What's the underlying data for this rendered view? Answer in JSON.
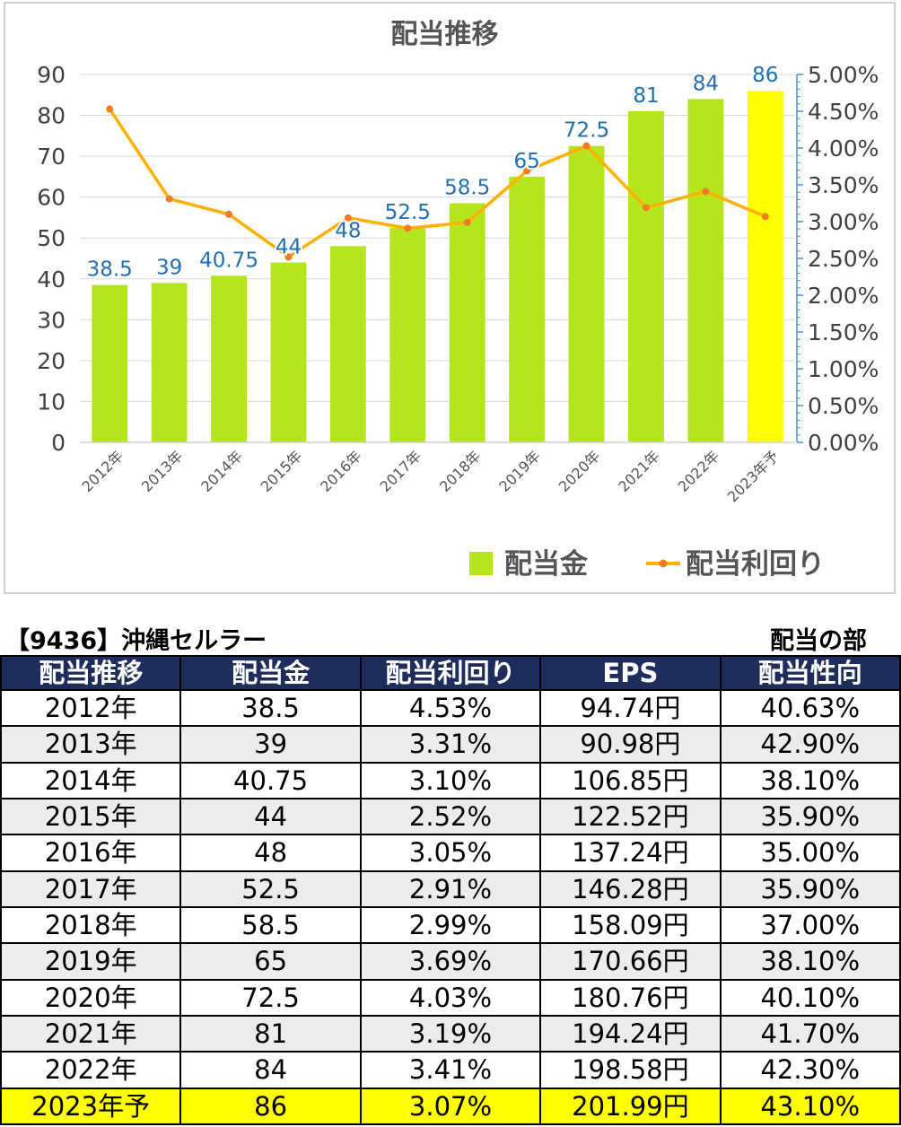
{
  "chart_data": {
    "type": "bar+line",
    "title": "配当推移",
    "categories": [
      "2012年",
      "2013年",
      "2014年",
      "2015年",
      "2016年",
      "2017年",
      "2018年",
      "2019年",
      "2020年",
      "2021年",
      "2022年",
      "2023年予"
    ],
    "series": [
      {
        "name": "配当金",
        "type": "bar",
        "axis": "left",
        "color": "#b5e61d",
        "highlight_color": "#ffff00",
        "highlight_index": 11,
        "values": [
          38.5,
          39,
          40.75,
          44,
          48,
          52.5,
          58.5,
          65,
          72.5,
          81,
          84,
          86
        ],
        "labels": [
          "38.5",
          "39",
          "40.75",
          "44",
          "48",
          "52.5",
          "58.5",
          "65",
          "72.5",
          "81",
          "84",
          "86"
        ],
        "label_color": "#1f6fb4"
      },
      {
        "name": "配当利回り",
        "type": "line",
        "axis": "right",
        "color": "#ffb000",
        "marker_color": "#f07c28",
        "values": [
          4.53,
          3.31,
          3.1,
          2.52,
          3.05,
          2.91,
          2.99,
          3.69,
          4.03,
          3.19,
          3.41,
          3.07
        ]
      }
    ],
    "y_left": {
      "ylim": [
        0,
        90
      ],
      "ticks": [
        "0",
        "10",
        "20",
        "30",
        "40",
        "50",
        "60",
        "70",
        "80",
        "90"
      ]
    },
    "y_right": {
      "ylim": [
        0,
        5
      ],
      "ticks": [
        "0.00%",
        "0.50%",
        "1.00%",
        "1.50%",
        "2.00%",
        "2.50%",
        "3.00%",
        "3.50%",
        "4.00%",
        "4.50%",
        "5.00%"
      ]
    },
    "grid": true,
    "legend": "bottom-right"
  },
  "table": {
    "title": "【9436】沖縄セルラー",
    "section": "配当の部",
    "headers": [
      "配当推移",
      "配当金",
      "配当利回り",
      "EPS",
      "配当性向"
    ],
    "rows": [
      [
        "2012年",
        "38.5",
        "4.53%",
        "94.74円",
        "40.63%"
      ],
      [
        "2013年",
        "39",
        "3.31%",
        "90.98円",
        "42.90%"
      ],
      [
        "2014年",
        "40.75",
        "3.10%",
        "106.85円",
        "38.10%"
      ],
      [
        "2015年",
        "44",
        "2.52%",
        "122.52円",
        "35.90%"
      ],
      [
        "2016年",
        "48",
        "3.05%",
        "137.24円",
        "35.00%"
      ],
      [
        "2017年",
        "52.5",
        "2.91%",
        "146.28円",
        "35.90%"
      ],
      [
        "2018年",
        "58.5",
        "2.99%",
        "158.09円",
        "37.00%"
      ],
      [
        "2019年",
        "65",
        "3.69%",
        "170.66円",
        "38.10%"
      ],
      [
        "2020年",
        "72.5",
        "4.03%",
        "180.76円",
        "40.10%"
      ],
      [
        "2021年",
        "81",
        "3.19%",
        "194.24円",
        "41.70%"
      ],
      [
        "2022年",
        "84",
        "3.41%",
        "198.58円",
        "42.30%"
      ],
      [
        "2023年予",
        "86",
        "3.07%",
        "201.99円",
        "43.10%"
      ]
    ],
    "forecast_row_index": 11
  }
}
